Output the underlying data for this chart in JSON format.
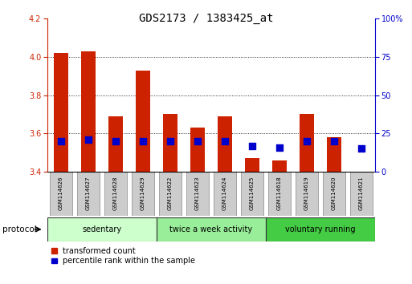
{
  "title": "GDS2173 / 1383425_at",
  "samples": [
    "GSM114626",
    "GSM114627",
    "GSM114628",
    "GSM114629",
    "GSM114622",
    "GSM114623",
    "GSM114624",
    "GSM114625",
    "GSM114618",
    "GSM114619",
    "GSM114620",
    "GSM114621"
  ],
  "transformed_count": [
    4.02,
    4.03,
    3.69,
    3.93,
    3.7,
    3.63,
    3.69,
    3.47,
    3.46,
    3.7,
    3.58,
    3.4
  ],
  "percentile_rank": [
    20,
    21,
    20,
    20,
    20,
    20,
    20,
    17,
    16,
    20,
    20,
    15
  ],
  "bar_bottom": 3.4,
  "ylim_left": [
    3.4,
    4.2
  ],
  "ylim_right": [
    0,
    100
  ],
  "yticks_left": [
    3.4,
    3.6,
    3.8,
    4.0,
    4.2
  ],
  "yticks_right": [
    0,
    25,
    50,
    75,
    100
  ],
  "ytick_labels_right": [
    "0",
    "25",
    "50",
    "75",
    "100%"
  ],
  "bar_color": "#cc2200",
  "dot_color": "#0000cc",
  "groups": [
    {
      "label": "sedentary",
      "start": 0,
      "end": 4,
      "color": "#ccffcc"
    },
    {
      "label": "twice a week activity",
      "start": 4,
      "end": 8,
      "color": "#99ee99"
    },
    {
      "label": "voluntary running",
      "start": 8,
      "end": 12,
      "color": "#44cc44"
    }
  ],
  "protocol_label": "protocol",
  "bar_width": 0.55,
  "dot_size": 28,
  "left_axis_color": "#cc2200",
  "right_axis_color": "#0000cc",
  "legend_red_label": "transformed count",
  "legend_blue_label": "percentile rank within the sample",
  "gridline_values": [
    3.6,
    3.8,
    4.0
  ],
  "label_box_color": "#cccccc",
  "title_fontsize": 10
}
